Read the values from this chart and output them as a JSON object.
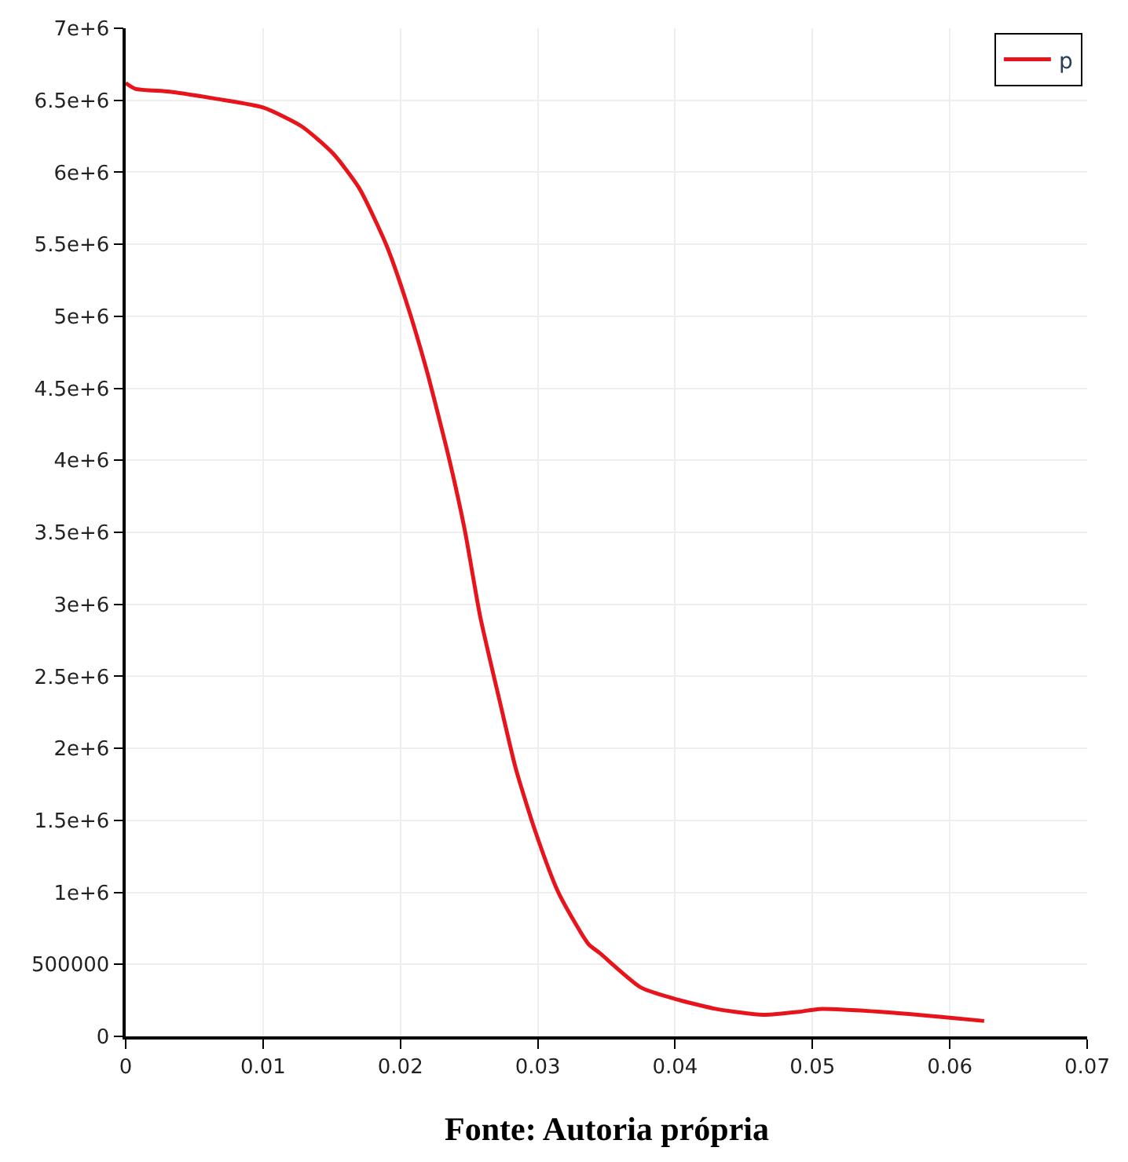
{
  "chart_data": {
    "type": "line",
    "x": [
      0,
      0.0007,
      0.0032,
      0.0066,
      0.01,
      0.0128,
      0.0151,
      0.017,
      0.019,
      0.0204,
      0.0219,
      0.0236,
      0.0247,
      0.0258,
      0.0272,
      0.0284,
      0.0298,
      0.0315,
      0.0337,
      0.0345,
      0.0375,
      0.04,
      0.043,
      0.0464,
      0.049,
      0.0505,
      0.055,
      0.06,
      0.0625
    ],
    "series": [
      {
        "name": "p",
        "color": "#e8141c",
        "values": [
          6620000,
          6580000,
          6560000,
          6510000,
          6450000,
          6320000,
          6130000,
          5890000,
          5490000,
          5110000,
          4630000,
          3990000,
          3510000,
          2920000,
          2340000,
          1860000,
          1430000,
          1000000,
          640000,
          580000,
          340000,
          260000,
          190000,
          150000,
          170000,
          190000,
          170000,
          130000,
          107000
        ]
      }
    ],
    "xlim": [
      0,
      0.07
    ],
    "xticks": [
      0,
      0.01,
      0.02,
      0.03,
      0.04,
      0.05,
      0.06,
      0.07
    ],
    "ylim": [
      0,
      7000000
    ],
    "yticks": [
      0,
      500000,
      {
        "value": 1000000,
        "label": "1e+6"
      },
      {
        "value": 1500000,
        "label": "1.5e+6"
      },
      {
        "value": 2000000,
        "label": "2e+6"
      },
      {
        "value": 2500000,
        "label": "2.5e+6"
      },
      {
        "value": 3000000,
        "label": "3e+6"
      },
      {
        "value": 3500000,
        "label": "3.5e+6"
      },
      {
        "value": 4000000,
        "label": "4e+6"
      },
      {
        "value": 4500000,
        "label": "4.5e+6"
      },
      {
        "value": 5000000,
        "label": "5e+6"
      },
      {
        "value": 5500000,
        "label": "5.5e+6"
      },
      {
        "value": 6000000,
        "label": "6e+6"
      },
      {
        "value": 6500000,
        "label": "6.5e+6"
      },
      {
        "value": 7000000,
        "label": "7e+6"
      }
    ],
    "grid": true,
    "legend": "top right",
    "marker": "none",
    "line_style": "solid",
    "annotations": [
      "Fonte: Autoria própria"
    ]
  }
}
